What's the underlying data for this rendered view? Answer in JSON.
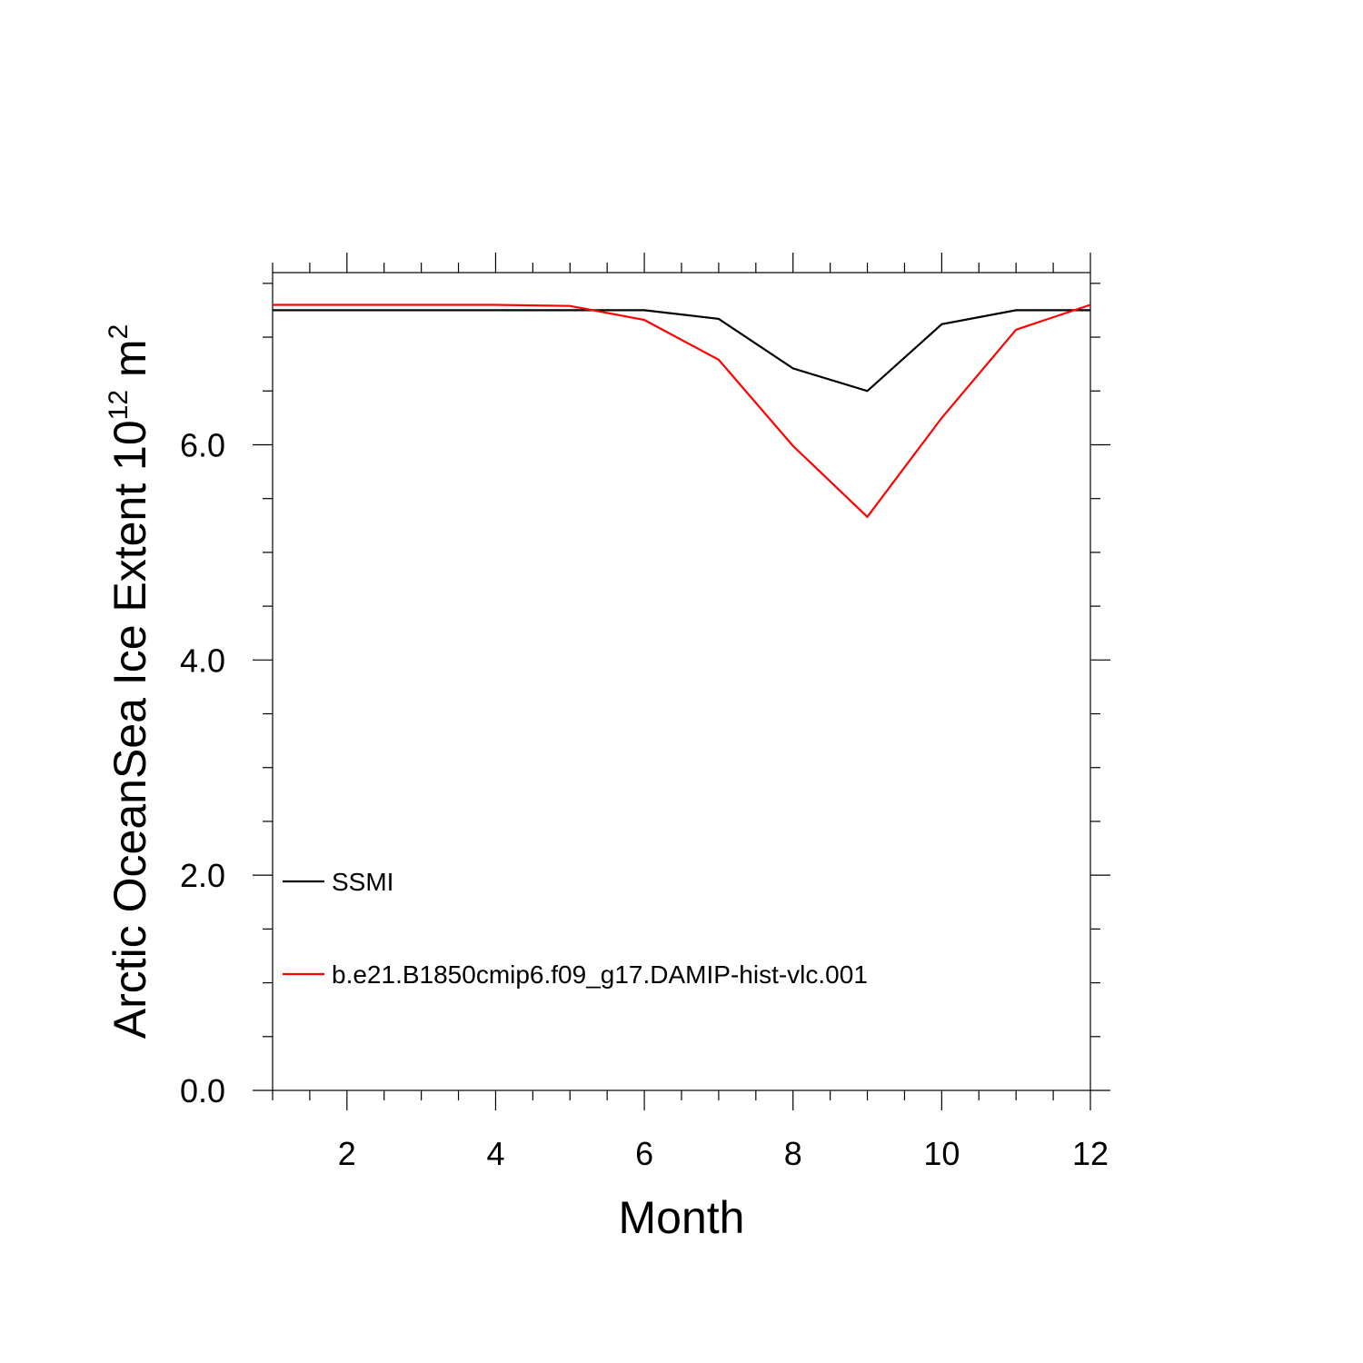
{
  "chart_data": {
    "type": "line",
    "title": "",
    "xlabel": "Month",
    "ylabel": "Arctic OceanSea Ice Extent 10",
    "ylabel_exponent": "12",
    "ylabel_unit": " m",
    "ylabel_unit_exponent": "2",
    "xlim": [
      1,
      12
    ],
    "ylim": [
      0,
      7.6
    ],
    "x_ticks": [
      2,
      4,
      6,
      8,
      10,
      12
    ],
    "y_ticks": [
      0.0,
      2.0,
      4.0,
      6.0
    ],
    "y_tick_labels": [
      "0.0",
      "2.0",
      "4.0",
      "6.0"
    ],
    "x": [
      1,
      2,
      3,
      4,
      5,
      6,
      7,
      8,
      9,
      10,
      11,
      12
    ],
    "series": [
      {
        "name": "SSMI",
        "color": "#000000",
        "values": [
          7.25,
          7.25,
          7.25,
          7.25,
          7.25,
          7.25,
          7.17,
          6.71,
          6.5,
          7.12,
          7.25,
          7.25
        ]
      },
      {
        "name": "b.e21.B1850cmip6.f09_g17.DAMIP-hist-vlc.001",
        "color": "#ff0000",
        "values": [
          7.3,
          7.3,
          7.3,
          7.3,
          7.29,
          7.16,
          6.79,
          5.99,
          5.33,
          6.25,
          7.07,
          7.3
        ]
      }
    ],
    "legend_position": "bottom-left",
    "grid": false
  }
}
